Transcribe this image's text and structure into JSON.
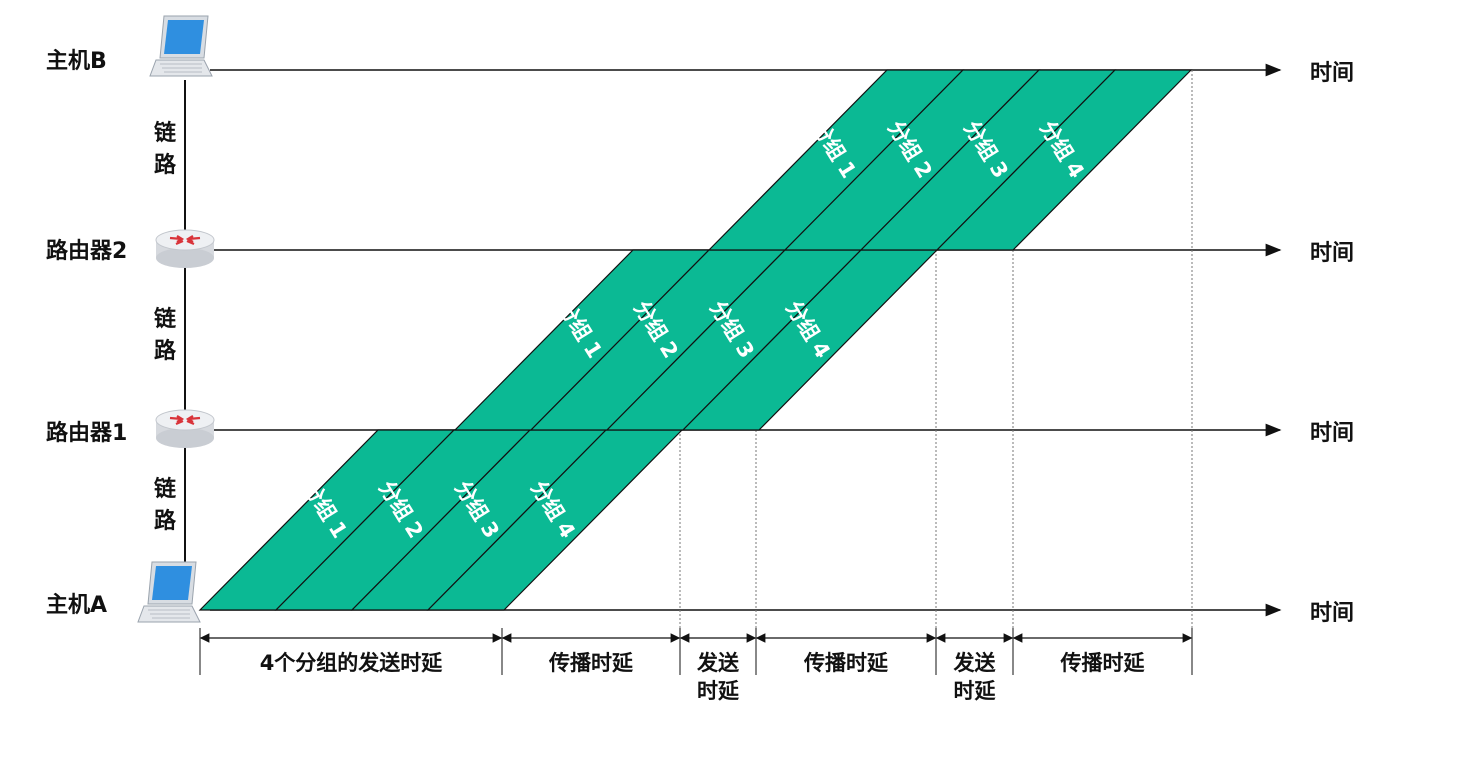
{
  "nodes": [
    {
      "id": "hostB",
      "label": "主机B",
      "icon": "laptop-icon"
    },
    {
      "id": "router2",
      "label": "路由器2",
      "icon": "router-icon"
    },
    {
      "id": "router1",
      "label": "路由器1",
      "icon": "router-icon"
    },
    {
      "id": "hostA",
      "label": "主机A",
      "icon": "laptop-icon"
    }
  ],
  "time_label": "时间",
  "link_label": [
    "链",
    "路"
  ],
  "packet_prefix": "分组",
  "packets": [
    "1",
    "2",
    "3",
    "4"
  ],
  "delays": [
    {
      "lines": [
        "4个分组的发送时延"
      ]
    },
    {
      "lines": [
        "传播时延"
      ]
    },
    {
      "lines": [
        "发送",
        "时延"
      ]
    },
    {
      "lines": [
        "传播时延"
      ]
    },
    {
      "lines": [
        "发送",
        "时延"
      ]
    },
    {
      "lines": [
        "传播时延"
      ]
    }
  ],
  "colors": {
    "packet_fill": "#0bb994",
    "packet_stroke": "#111111",
    "axis": "#111111",
    "router_red": "#d9343a",
    "laptop_screen": "#2f8fe0"
  }
}
